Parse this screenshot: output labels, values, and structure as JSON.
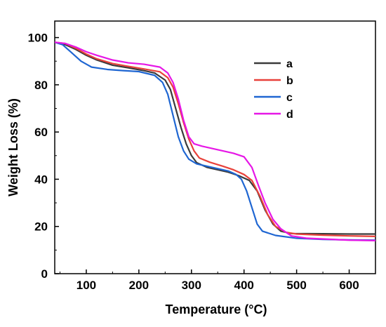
{
  "chart_data": {
    "type": "line",
    "title": "",
    "xlabel": "Temperature (°C)",
    "ylabel": "Weight Loss (%)",
    "xlim": [
      40,
      650
    ],
    "ylim": [
      0,
      107
    ],
    "xticks": [
      100,
      200,
      300,
      400,
      500,
      600
    ],
    "yticks": [
      0,
      20,
      40,
      60,
      80,
      100
    ],
    "xtick_labels": [
      "100",
      "200",
      "300",
      "400",
      "500",
      "600"
    ],
    "ytick_labels": [
      "0",
      "20",
      "40",
      "60",
      "80",
      "100"
    ],
    "grid": false,
    "legend_position": "top-right",
    "series": [
      {
        "name": "a",
        "color": "#3a3a3a",
        "points": [
          [
            40,
            98
          ],
          [
            60,
            97
          ],
          [
            80,
            95
          ],
          [
            100,
            92.5
          ],
          [
            120,
            90.5
          ],
          [
            150,
            88.3
          ],
          [
            180,
            87.2
          ],
          [
            210,
            86
          ],
          [
            230,
            85
          ],
          [
            250,
            82
          ],
          [
            260,
            78
          ],
          [
            270,
            70
          ],
          [
            280,
            62
          ],
          [
            290,
            55
          ],
          [
            300,
            50
          ],
          [
            310,
            47
          ],
          [
            330,
            45
          ],
          [
            350,
            44
          ],
          [
            370,
            43
          ],
          [
            390,
            41.5
          ],
          [
            410,
            39.5
          ],
          [
            425,
            35
          ],
          [
            440,
            27
          ],
          [
            455,
            21
          ],
          [
            470,
            18
          ],
          [
            490,
            17
          ],
          [
            550,
            16.9
          ],
          [
            600,
            16.8
          ],
          [
            650,
            16.8
          ]
        ]
      },
      {
        "name": "b",
        "color": "#e8413a",
        "points": [
          [
            40,
            98
          ],
          [
            60,
            97.5
          ],
          [
            80,
            95.5
          ],
          [
            100,
            93
          ],
          [
            120,
            91
          ],
          [
            150,
            89
          ],
          [
            180,
            87.8
          ],
          [
            210,
            86.7
          ],
          [
            240,
            85.5
          ],
          [
            255,
            83
          ],
          [
            265,
            79
          ],
          [
            275,
            72
          ],
          [
            285,
            64
          ],
          [
            295,
            57
          ],
          [
            305,
            52
          ],
          [
            315,
            49
          ],
          [
            335,
            47.2
          ],
          [
            360,
            45.5
          ],
          [
            380,
            44
          ],
          [
            400,
            42
          ],
          [
            415,
            39.5
          ],
          [
            430,
            33
          ],
          [
            445,
            25
          ],
          [
            460,
            20
          ],
          [
            480,
            17.5
          ],
          [
            500,
            16.8
          ],
          [
            550,
            16.3
          ],
          [
            600,
            16
          ],
          [
            650,
            15.8
          ]
        ]
      },
      {
        "name": "c",
        "color": "#1f66d2",
        "points": [
          [
            40,
            98
          ],
          [
            55,
            97
          ],
          [
            70,
            94
          ],
          [
            90,
            90
          ],
          [
            110,
            87.5
          ],
          [
            140,
            86.5
          ],
          [
            170,
            86
          ],
          [
            200,
            85.6
          ],
          [
            230,
            84
          ],
          [
            245,
            81
          ],
          [
            255,
            76
          ],
          [
            265,
            67
          ],
          [
            275,
            58
          ],
          [
            285,
            52
          ],
          [
            295,
            48.5
          ],
          [
            310,
            46.5
          ],
          [
            330,
            45.5
          ],
          [
            350,
            44.5
          ],
          [
            370,
            43.5
          ],
          [
            385,
            42
          ],
          [
            395,
            40
          ],
          [
            405,
            35
          ],
          [
            415,
            28
          ],
          [
            425,
            21
          ],
          [
            435,
            18
          ],
          [
            460,
            16.2
          ],
          [
            500,
            15
          ],
          [
            550,
            14.5
          ],
          [
            600,
            14.3
          ],
          [
            650,
            14.2
          ]
        ]
      },
      {
        "name": "d",
        "color": "#e617e6",
        "points": [
          [
            40,
            98
          ],
          [
            60,
            97.5
          ],
          [
            80,
            96
          ],
          [
            100,
            94
          ],
          [
            120,
            92.5
          ],
          [
            150,
            90.5
          ],
          [
            180,
            89.3
          ],
          [
            210,
            88.7
          ],
          [
            240,
            87.5
          ],
          [
            255,
            85
          ],
          [
            265,
            81
          ],
          [
            275,
            74
          ],
          [
            285,
            65
          ],
          [
            295,
            58
          ],
          [
            305,
            55
          ],
          [
            320,
            54
          ],
          [
            340,
            53
          ],
          [
            360,
            52
          ],
          [
            380,
            51
          ],
          [
            400,
            49.5
          ],
          [
            415,
            45
          ],
          [
            428,
            37
          ],
          [
            440,
            30
          ],
          [
            455,
            23
          ],
          [
            470,
            19
          ],
          [
            490,
            16
          ],
          [
            520,
            15
          ],
          [
            560,
            14.6
          ],
          [
            600,
            14.2
          ],
          [
            650,
            14
          ]
        ]
      }
    ]
  }
}
